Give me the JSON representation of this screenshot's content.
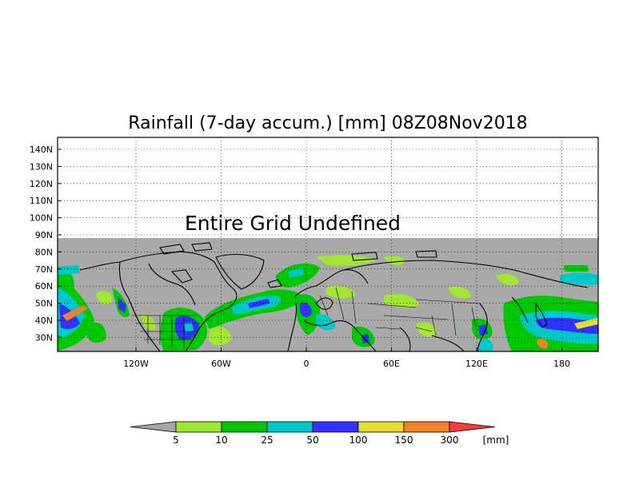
{
  "title": "Rainfall (7-day accum.) [mm] 08Z08Nov2018",
  "overlay_text": "Entire Grid Undefined",
  "lat_labels": [
    "140N",
    "130N",
    "120N",
    "110N",
    "100N",
    "90N",
    "80N",
    "70N",
    "60N",
    "50N",
    "40N",
    "30N"
  ],
  "lon_labels": [
    "120W",
    "60W",
    "0",
    "60E",
    "120E",
    "180"
  ],
  "colorbar": {
    "colors": [
      "#a6a6a6",
      "#a0e632",
      "#00c800",
      "#00c8c8",
      "#3232ff",
      "#e6dc32",
      "#f08228",
      "#fa3c3c"
    ],
    "labels": [
      "5",
      "10",
      "25",
      "50",
      "100",
      "150",
      "300"
    ],
    "unit": "[mm]"
  },
  "colors": {
    "undefined_gray": "#a9a9a9",
    "land_gray": "#a6a6a6",
    "light_green": "#a0e632",
    "green": "#00c800",
    "cyan": "#00c8c8",
    "blue": "#3232ff",
    "yellow": "#e6dc32",
    "orange": "#f08228",
    "red": "#fa3c3c"
  }
}
